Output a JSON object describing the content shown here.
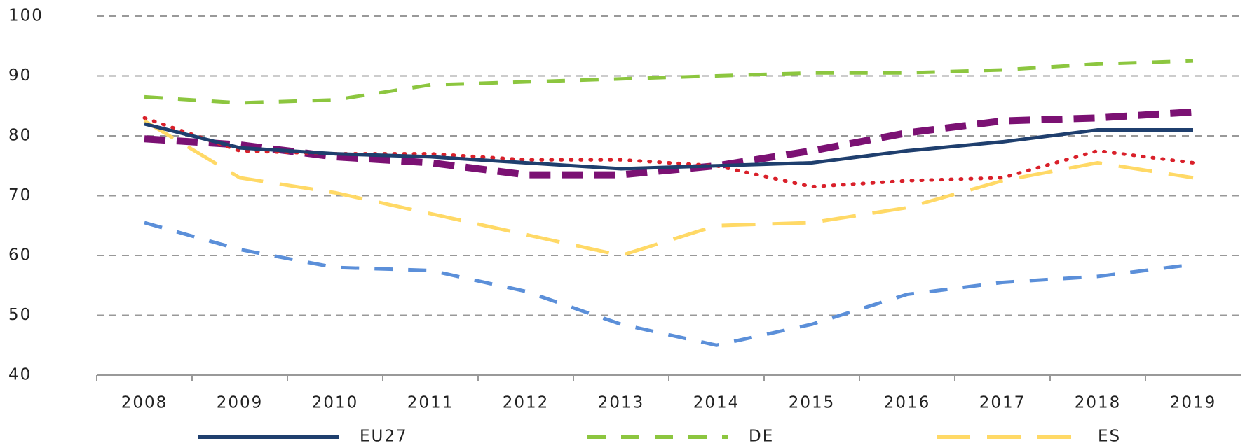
{
  "chart_data": {
    "type": "line",
    "categories": [
      "2008",
      "2009",
      "2010",
      "2011",
      "2012",
      "2013",
      "2014",
      "2015",
      "2016",
      "2017",
      "2018",
      "2019"
    ],
    "ylim": [
      40,
      100
    ],
    "yticks": [
      40,
      50,
      60,
      70,
      80,
      90,
      100
    ],
    "grid": true,
    "legend": "bottom",
    "series": [
      {
        "name": "EU27",
        "color": "#1f3f6e",
        "style": "solid",
        "values": [
          82,
          78,
          77,
          76.5,
          75.5,
          74.5,
          75,
          75.5,
          77.5,
          79,
          81,
          81
        ]
      },
      {
        "name": "DE",
        "color": "#8cc63f",
        "style": "dashed",
        "values": [
          86.5,
          85.5,
          86,
          88.5,
          89,
          89.5,
          90,
          90.5,
          90.5,
          91,
          92,
          92.5
        ]
      },
      {
        "name": "ES",
        "color": "#ffd966",
        "style": "longdash",
        "values": [
          82.5,
          73,
          70.5,
          67,
          63.5,
          60,
          65,
          65.5,
          68,
          72.5,
          75.5,
          73
        ]
      },
      {
        "color": "#5b8fd9",
        "style": "dashed",
        "values": [
          65.5,
          61,
          58,
          57.5,
          54,
          48.5,
          45,
          48.5,
          53.5,
          55.5,
          56.5,
          58.5
        ]
      },
      {
        "color": "#7b1173",
        "style": "thickdash",
        "values": [
          79.5,
          78.5,
          76.5,
          75.5,
          73.5,
          73.5,
          75,
          77.5,
          80.5,
          82.5,
          83,
          84
        ]
      },
      {
        "color": "#d9202a",
        "style": "dotted",
        "values": [
          83,
          77.5,
          77,
          77,
          76,
          76,
          75,
          71.5,
          72.5,
          73,
          77.5,
          75.5
        ]
      }
    ]
  }
}
